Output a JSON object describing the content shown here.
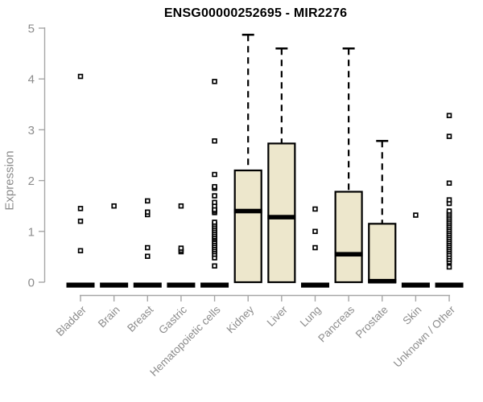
{
  "chart_data": {
    "type": "boxplot",
    "title": "ENSG00000252695 - MIR2276",
    "ylabel": "Expression",
    "xlabel": "",
    "ylim": [
      0,
      5
    ],
    "yticks": [
      0,
      1,
      2,
      3,
      4,
      5
    ],
    "grid": false,
    "legend": "none",
    "categories": [
      "Bladder",
      "Brain",
      "Breast",
      "Gastric",
      "Hematopoietic cells",
      "Kidney",
      "Liver",
      "Lung",
      "Pancreas",
      "Prostate",
      "Skin",
      "Unknown / Other"
    ],
    "series": [
      {
        "category": "Bladder",
        "q1": 0,
        "median": 0,
        "q3": 0,
        "whisker_low": 0,
        "whisker_high": 0,
        "outliers": [
          0.62,
          1.2,
          1.45,
          4.05
        ]
      },
      {
        "category": "Brain",
        "q1": 0,
        "median": 0,
        "q3": 0,
        "whisker_low": 0,
        "whisker_high": 0,
        "outliers": [
          1.5
        ]
      },
      {
        "category": "Breast",
        "q1": 0,
        "median": 0,
        "q3": 0,
        "whisker_low": 0,
        "whisker_high": 0,
        "outliers": [
          0.51,
          0.68,
          1.33,
          1.38,
          1.6
        ]
      },
      {
        "category": "Gastric",
        "q1": 0,
        "median": 0,
        "q3": 0,
        "whisker_low": 0,
        "whisker_high": 0,
        "outliers": [
          0.6,
          0.63,
          0.67,
          1.5
        ]
      },
      {
        "category": "Hematopoietic cells",
        "q1": 0,
        "median": 0,
        "q3": 0,
        "whisker_low": 0,
        "whisker_high": 0,
        "outliers": [
          0.32,
          0.48,
          0.55,
          0.6,
          0.64,
          0.68,
          0.72,
          0.76,
          0.8,
          0.84,
          0.87,
          0.9,
          0.94,
          0.98,
          1.02,
          1.06,
          1.1,
          1.14,
          1.18,
          1.37,
          1.4,
          1.43,
          1.5,
          1.57,
          1.7,
          1.85,
          1.88,
          2.12,
          2.78,
          3.95
        ]
      },
      {
        "category": "Kidney",
        "q1": 0,
        "median": 1.4,
        "q3": 2.2,
        "whisker_low": 0,
        "whisker_high": 4.87,
        "outliers": []
      },
      {
        "category": "Liver",
        "q1": 0,
        "median": 1.28,
        "q3": 2.73,
        "whisker_low": 0,
        "whisker_high": 4.6,
        "outliers": []
      },
      {
        "category": "Lung",
        "q1": 0,
        "median": 0,
        "q3": 0,
        "whisker_low": 0,
        "whisker_high": 0,
        "outliers": [
          0.68,
          1.0,
          1.44
        ]
      },
      {
        "category": "Pancreas",
        "q1": 0,
        "median": 0.55,
        "q3": 1.78,
        "whisker_low": 0,
        "whisker_high": 4.6,
        "outliers": []
      },
      {
        "category": "Prostate",
        "q1": 0,
        "median": 0.02,
        "q3": 1.15,
        "whisker_low": 0,
        "whisker_high": 2.78,
        "outliers": []
      },
      {
        "category": "Skin",
        "q1": 0,
        "median": 0,
        "q3": 0,
        "whisker_low": 0,
        "whisker_high": 0,
        "outliers": [
          1.32
        ]
      },
      {
        "category": "Unknown / Other",
        "q1": 0,
        "median": 0,
        "q3": 0,
        "whisker_low": 0,
        "whisker_high": 0,
        "outliers": [
          0.3,
          0.4,
          0.45,
          0.5,
          0.55,
          0.6,
          0.64,
          0.68,
          0.72,
          0.76,
          0.8,
          0.84,
          0.88,
          0.92,
          0.96,
          1.0,
          1.04,
          1.08,
          1.12,
          1.16,
          1.2,
          1.24,
          1.28,
          1.32,
          1.36,
          1.4,
          1.55,
          1.62,
          1.95,
          2.87,
          3.28
        ]
      }
    ],
    "colors": {
      "box_fill": "#EDE7CC",
      "box_stroke": "#000000",
      "median_color": "#000000",
      "whisker_color": "#000000",
      "outlier_stroke": "#000000",
      "outlier_fill": "#ffffff",
      "axis_color": "#A6A6A6",
      "tick_label_color": "#8C8C8C",
      "title_color": "#000000",
      "background": "#ffffff"
    }
  }
}
